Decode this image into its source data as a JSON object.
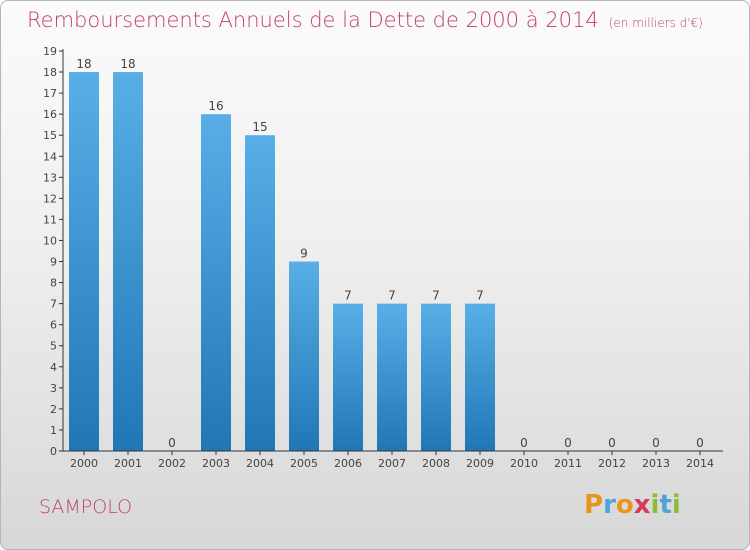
{
  "header": {
    "title": "Remboursements Annuels de la Dette de 2000 à 2014",
    "unit_note": "(en milliers d'€)"
  },
  "footer": {
    "commune": "SAMPOLO",
    "logo_letters": [
      "P",
      "r",
      "o",
      "x",
      "i",
      "t",
      "i"
    ],
    "logo_colors": [
      "#e8941e",
      "#4fa3d8",
      "#e8941e",
      "#d63a5a",
      "#8cbe3c",
      "#4fa3d8",
      "#8cbe3c"
    ]
  },
  "chart_data": {
    "type": "bar",
    "title": "Remboursements Annuels de la Dette de 2000 à 2014",
    "xlabel": "",
    "ylabel": "",
    "categories": [
      "2000",
      "2001",
      "2002",
      "2003",
      "2004",
      "2005",
      "2006",
      "2007",
      "2008",
      "2009",
      "2010",
      "2011",
      "2012",
      "2013",
      "2014"
    ],
    "values": [
      18,
      18,
      0,
      16,
      15,
      9,
      7,
      7,
      7,
      7,
      0,
      0,
      0,
      0,
      0
    ],
    "data_labels": [
      "18",
      "18",
      "0",
      "16",
      "15",
      "9",
      "7",
      "7",
      "7",
      "7",
      "0",
      "0",
      "0",
      "0",
      "0"
    ],
    "yticks": [
      0,
      1,
      2,
      3,
      4,
      5,
      6,
      7,
      8,
      9,
      10,
      11,
      12,
      13,
      14,
      15,
      16,
      17,
      18,
      19
    ],
    "ylim": [
      0,
      19
    ],
    "grid": false,
    "colors": {
      "bar_top": "#5aaee8",
      "bar_bottom": "#2176b4",
      "axis": "#333333",
      "text": "#444444"
    }
  }
}
